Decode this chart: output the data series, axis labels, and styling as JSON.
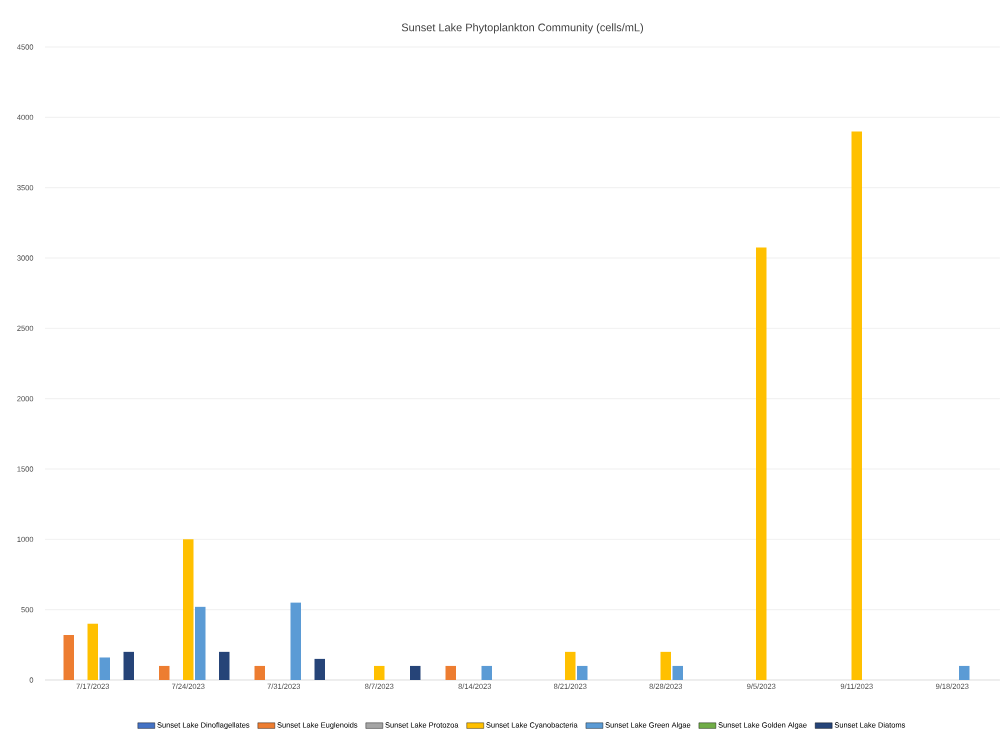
{
  "chart_data": {
    "type": "bar",
    "title": "Sunset Lake Phytoplankton Community (cells/mL)",
    "categories": [
      "7/17/2023",
      "7/24/2023",
      "7/31/2023",
      "8/7/2023",
      "8/14/2023",
      "8/21/2023",
      "8/28/2023",
      "9/5/2023",
      "9/11/2023",
      "9/18/2023"
    ],
    "series": [
      {
        "name": "Sunset Lake Dinoflagellates",
        "color": "#4472c4",
        "values": [
          null,
          null,
          null,
          null,
          null,
          null,
          null,
          null,
          null,
          null
        ]
      },
      {
        "name": "Sunset Lake Euglenoids",
        "color": "#ed7d31",
        "values": [
          320,
          100,
          100,
          null,
          100,
          null,
          null,
          null,
          null,
          null
        ]
      },
      {
        "name": "Sunset Lake Protozoa",
        "color": "#a5a5a5",
        "values": [
          null,
          null,
          null,
          null,
          null,
          null,
          null,
          null,
          null,
          null
        ]
      },
      {
        "name": "Sunset Lake Cyanobacteria",
        "color": "#ffc000",
        "values": [
          400,
          1000,
          null,
          100,
          null,
          200,
          200,
          3075,
          3900,
          null
        ]
      },
      {
        "name": "Sunset Lake Green Algae",
        "color": "#5b9bd5",
        "values": [
          160,
          520,
          550,
          null,
          100,
          100,
          100,
          null,
          null,
          100
        ]
      },
      {
        "name": "Sunset Lake Golden Algae",
        "color": "#70ad47",
        "values": [
          null,
          null,
          null,
          null,
          null,
          null,
          null,
          null,
          null,
          null
        ]
      },
      {
        "name": "Sunset Lake Diatoms",
        "color": "#264478",
        "values": [
          200,
          200,
          150,
          100,
          null,
          null,
          null,
          null,
          null,
          null
        ]
      }
    ],
    "ylim": [
      0,
      4500
    ],
    "yticks": [
      0,
      500,
      1000,
      1500,
      2000,
      2500,
      3000,
      3500,
      4000,
      4500
    ],
    "grid": "y",
    "legend": "bottom"
  }
}
